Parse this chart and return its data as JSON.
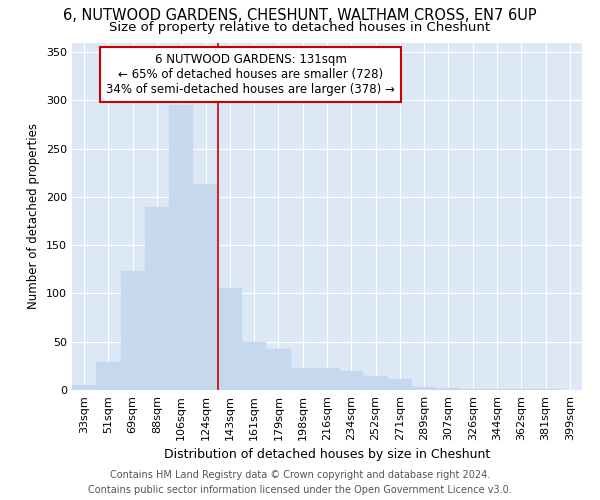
{
  "title": "6, NUTWOOD GARDENS, CHESHUNT, WALTHAM CROSS, EN7 6UP",
  "subtitle": "Size of property relative to detached houses in Cheshunt",
  "xlabel": "Distribution of detached houses by size in Cheshunt",
  "ylabel": "Number of detached properties",
  "footer_line1": "Contains HM Land Registry data © Crown copyright and database right 2024.",
  "footer_line2": "Contains public sector information licensed under the Open Government Licence v3.0.",
  "categories": [
    "33sqm",
    "51sqm",
    "69sqm",
    "88sqm",
    "106sqm",
    "124sqm",
    "143sqm",
    "161sqm",
    "179sqm",
    "198sqm",
    "216sqm",
    "234sqm",
    "252sqm",
    "271sqm",
    "289sqm",
    "307sqm",
    "326sqm",
    "344sqm",
    "362sqm",
    "381sqm",
    "399sqm"
  ],
  "values": [
    5,
    29,
    123,
    190,
    295,
    213,
    106,
    50,
    42,
    23,
    23,
    20,
    15,
    11,
    3,
    2,
    1,
    1,
    1,
    1,
    0
  ],
  "bar_color": "#c5d8ed",
  "bar_edge_color": "#c5d8ed",
  "vline_color": "#cc0000",
  "annotation_text": "6 NUTWOOD GARDENS: 131sqm\n← 65% of detached houses are smaller (728)\n34% of semi-detached houses are larger (378) →",
  "annotation_box_color": "#ffffff",
  "annotation_box_edge": "#cc0000",
  "ylim": [
    0,
    360
  ],
  "yticks": [
    0,
    50,
    100,
    150,
    200,
    250,
    300,
    350
  ],
  "background_color": "#ffffff",
  "plot_bg_color": "#dce8f5",
  "grid_color": "#ffffff",
  "title_fontsize": 10.5,
  "subtitle_fontsize": 9.5,
  "tick_fontsize": 8,
  "ylabel_fontsize": 8.5,
  "xlabel_fontsize": 9,
  "footer_fontsize": 7,
  "annotation_fontsize": 8.5
}
